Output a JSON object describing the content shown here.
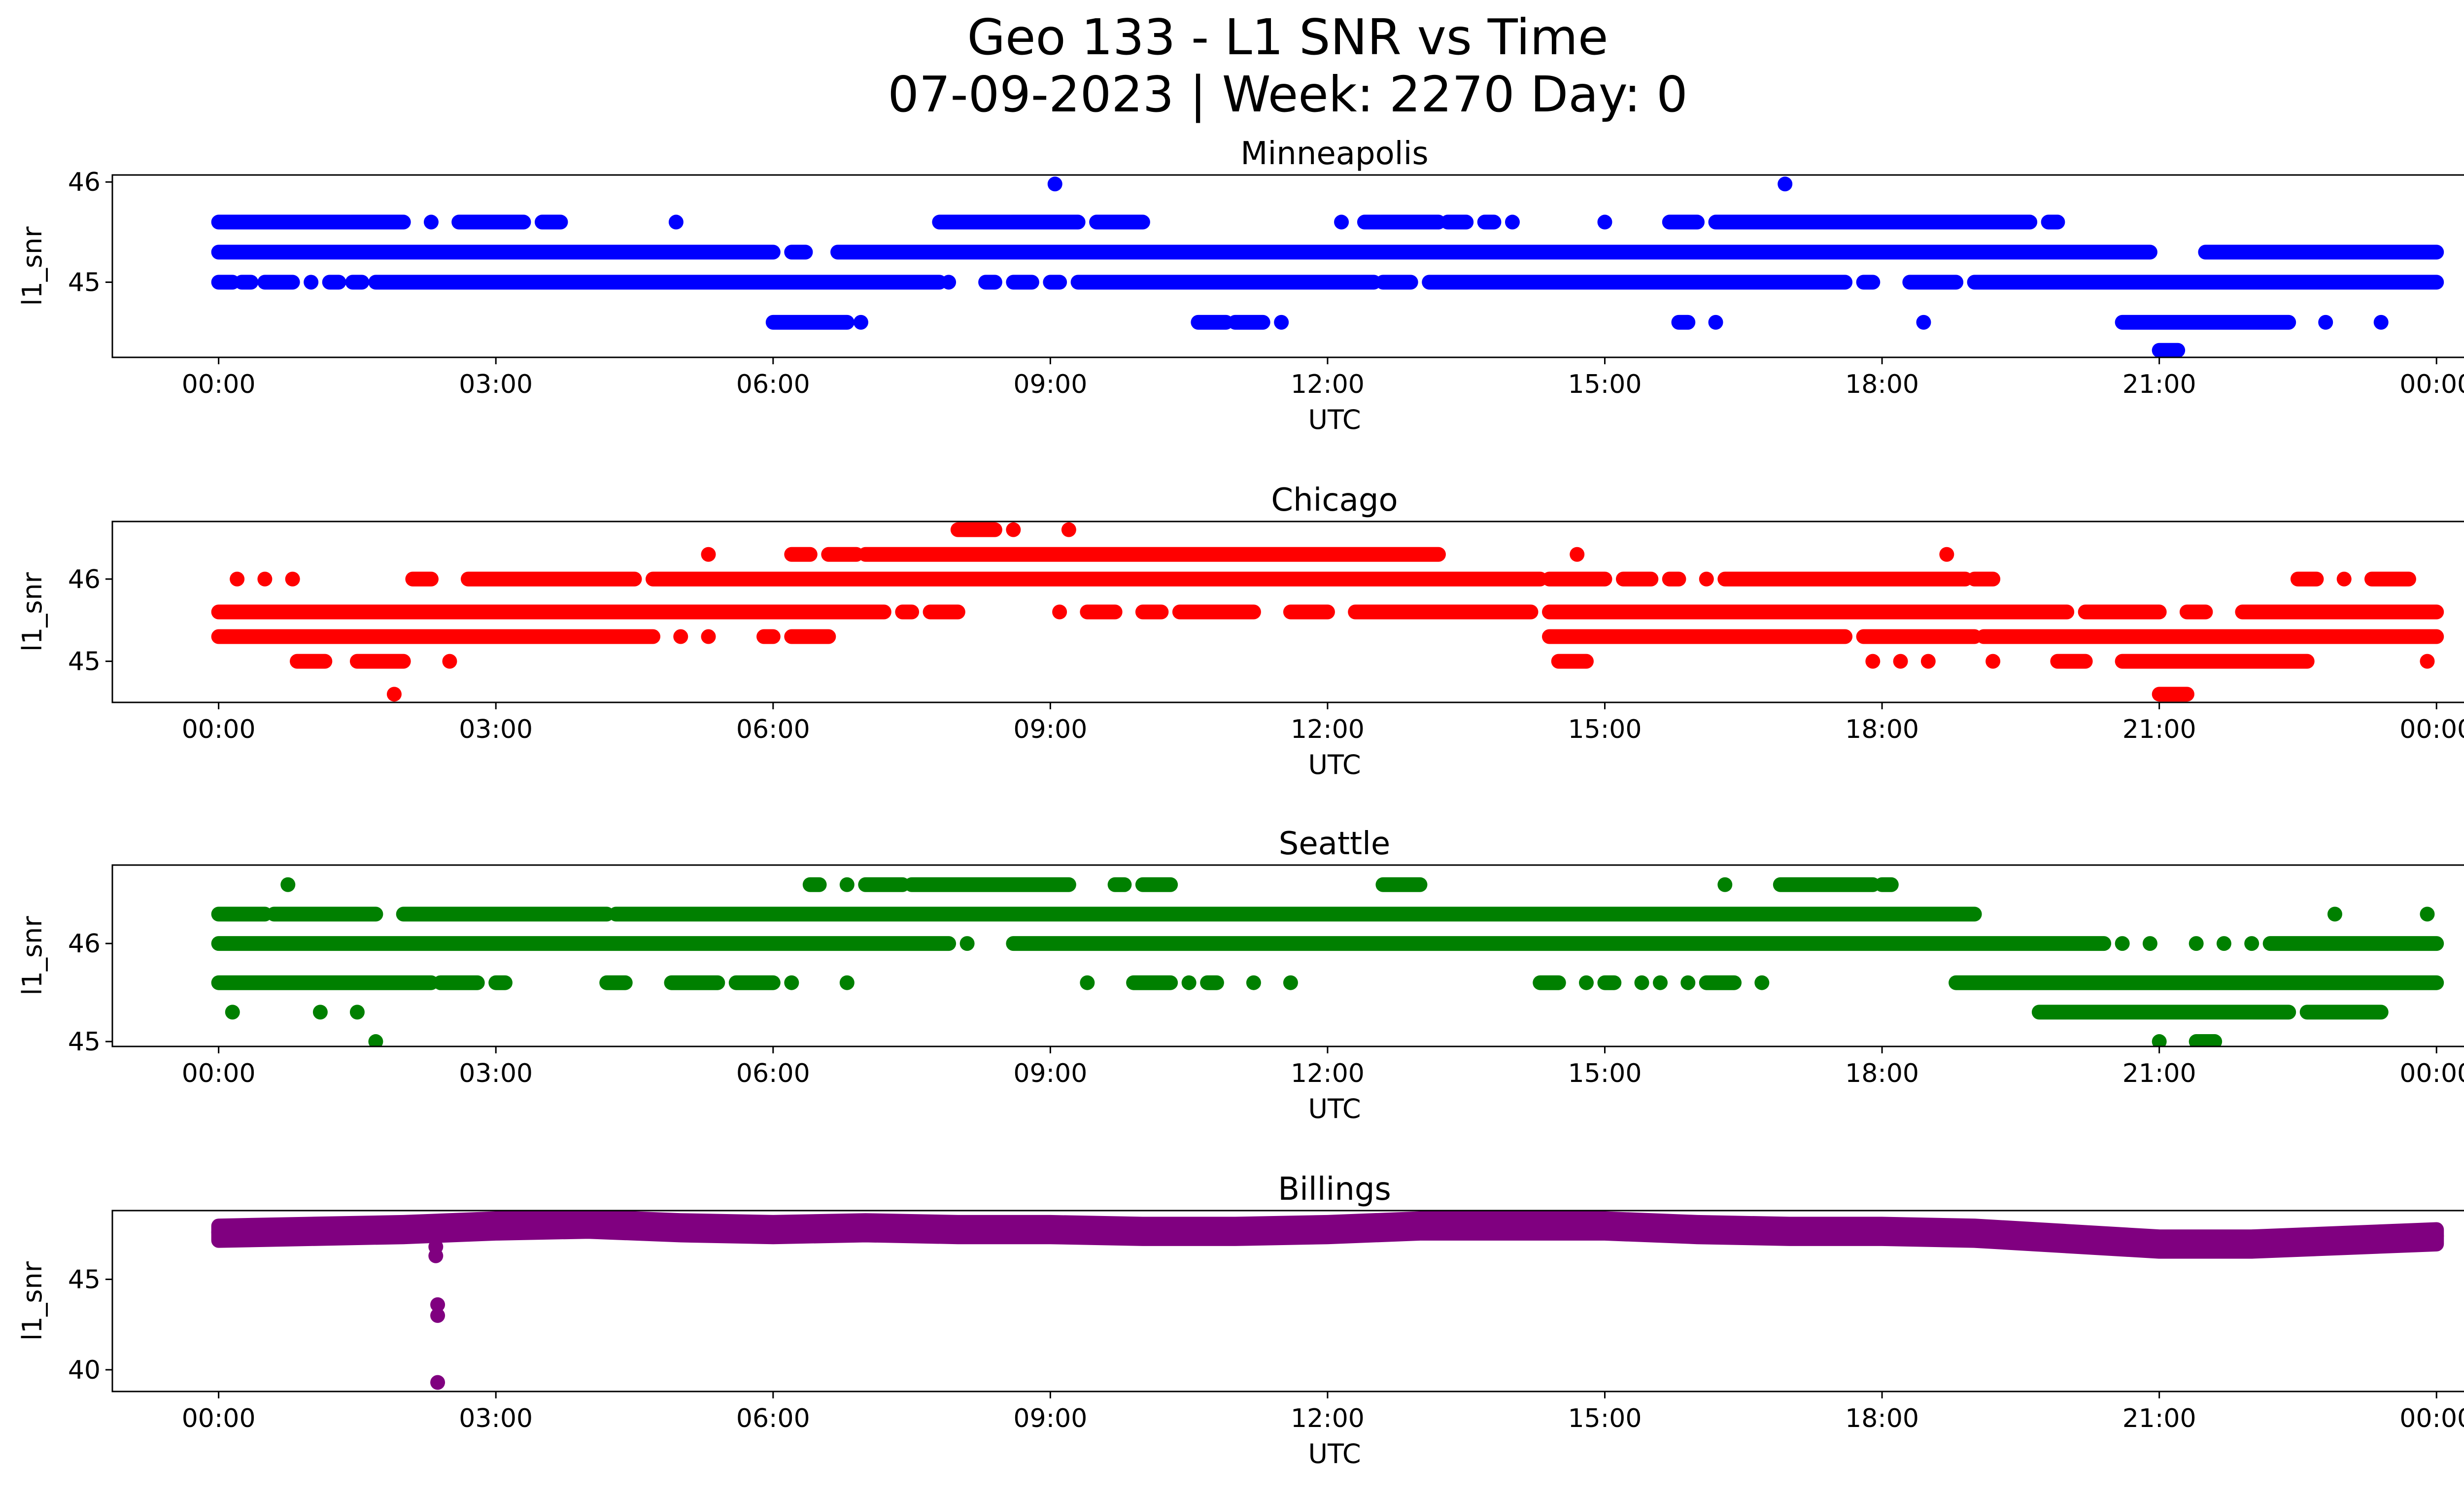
{
  "figure": {
    "title_line1": "Geo 133 - L1 SNR vs Time",
    "title_line2": "07-09-2023 | Week: 2270 Day: 0"
  },
  "chart_data": [
    {
      "type": "scatter",
      "title": "Minneapolis",
      "xlabel": "UTC",
      "ylabel": "l1_snr",
      "color": "#0000ff",
      "x_ticks": [
        "00:00",
        "03:00",
        "06:00",
        "09:00",
        "12:00",
        "15:00",
        "18:00",
        "21:00",
        "00:00"
      ],
      "xlim_hours": [
        -1.15,
        25.3
      ],
      "ylim": [
        44.25,
        46.07
      ],
      "y_ticks": [
        45,
        46
      ],
      "levels": [
        {
          "y": 44.6,
          "ranges": [
            [
              6.0,
              6.8
            ],
            [
              6.95,
              6.95
            ],
            [
              10.6,
              10.9
            ],
            [
              11.0,
              11.3
            ],
            [
              11.5,
              11.5
            ],
            [
              15.8,
              15.9
            ],
            [
              16.2,
              16.2
            ],
            [
              18.45,
              18.45
            ],
            [
              20.6,
              22.4
            ],
            [
              22.8,
              22.8
            ],
            [
              23.4,
              23.4
            ]
          ]
        },
        {
          "y": 45.0,
          "ranges": [
            [
              0.0,
              0.15
            ],
            [
              0.25,
              0.35
            ],
            [
              0.5,
              0.8
            ],
            [
              1.0,
              1.0
            ],
            [
              1.2,
              1.3
            ],
            [
              1.45,
              1.55
            ],
            [
              1.7,
              7.8
            ],
            [
              7.9,
              7.9
            ],
            [
              8.3,
              8.4
            ],
            [
              8.6,
              8.8
            ],
            [
              9.0,
              9.1
            ],
            [
              9.3,
              12.5
            ],
            [
              12.6,
              12.9
            ],
            [
              13.1,
              17.6
            ],
            [
              17.8,
              17.9
            ],
            [
              18.3,
              18.8
            ],
            [
              19.0,
              24.0
            ]
          ]
        },
        {
          "y": 45.3,
          "ranges": [
            [
              0.0,
              6.0
            ],
            [
              6.2,
              6.35
            ],
            [
              6.7,
              20.9
            ],
            [
              21.5,
              24.0
            ]
          ]
        },
        {
          "y": 45.6,
          "ranges": [
            [
              0.0,
              2.0
            ],
            [
              2.3,
              2.3
            ],
            [
              2.6,
              3.3
            ],
            [
              3.5,
              3.7
            ],
            [
              4.95,
              4.95
            ],
            [
              7.8,
              9.3
            ],
            [
              9.5,
              10.0
            ],
            [
              12.15,
              12.15
            ],
            [
              12.4,
              13.2
            ],
            [
              13.3,
              13.5
            ],
            [
              13.7,
              13.8
            ],
            [
              14.0,
              14.0
            ],
            [
              15.0,
              15.0
            ],
            [
              15.7,
              16.0
            ],
            [
              16.2,
              19.6
            ],
            [
              19.8,
              19.9
            ]
          ]
        },
        {
          "y": 45.98,
          "ranges": [
            [
              9.05,
              9.05
            ],
            [
              16.95,
              16.95
            ]
          ]
        },
        {
          "y": 44.32,
          "ranges": [
            [
              21.0,
              21.2
            ]
          ]
        }
      ]
    },
    {
      "type": "scatter",
      "title": "Chicago",
      "xlabel": "UTC",
      "ylabel": "l1_snr",
      "color": "#ff0000",
      "x_ticks": [
        "00:00",
        "03:00",
        "06:00",
        "09:00",
        "12:00",
        "15:00",
        "18:00",
        "21:00",
        "00:00"
      ],
      "xlim_hours": [
        -1.15,
        25.3
      ],
      "ylim": [
        44.5,
        46.7
      ],
      "y_ticks": [
        45,
        46
      ],
      "levels": [
        {
          "y": 44.6,
          "ranges": [
            [
              1.9,
              1.9
            ],
            [
              21.0,
              21.3
            ]
          ]
        },
        {
          "y": 45.0,
          "ranges": [
            [
              0.85,
              1.15
            ],
            [
              1.5,
              2.0
            ],
            [
              2.5,
              2.5
            ],
            [
              14.5,
              14.8
            ],
            [
              17.9,
              17.9
            ],
            [
              18.2,
              18.2
            ],
            [
              18.5,
              18.5
            ],
            [
              19.2,
              19.2
            ],
            [
              19.9,
              20.2
            ],
            [
              20.6,
              22.6
            ],
            [
              23.9,
              23.9
            ]
          ]
        },
        {
          "y": 45.3,
          "ranges": [
            [
              0.0,
              4.7
            ],
            [
              5.0,
              5.0
            ],
            [
              5.3,
              5.3
            ],
            [
              5.9,
              6.0
            ],
            [
              6.2,
              6.6
            ],
            [
              14.4,
              17.6
            ],
            [
              17.8,
              19.0
            ],
            [
              19.1,
              24.0
            ]
          ]
        },
        {
          "y": 45.6,
          "ranges": [
            [
              0.0,
              7.2
            ],
            [
              7.4,
              7.5
            ],
            [
              7.7,
              8.0
            ],
            [
              9.1,
              9.1
            ],
            [
              9.4,
              9.7
            ],
            [
              10.0,
              10.2
            ],
            [
              10.4,
              11.2
            ],
            [
              11.6,
              12.0
            ],
            [
              12.3,
              14.2
            ],
            [
              14.4,
              20.0
            ],
            [
              20.2,
              21.0
            ],
            [
              21.3,
              21.5
            ],
            [
              21.9,
              24.0
            ]
          ]
        },
        {
          "y": 46.0,
          "ranges": [
            [
              0.2,
              0.2
            ],
            [
              0.5,
              0.5
            ],
            [
              0.8,
              0.8
            ],
            [
              2.1,
              2.3
            ],
            [
              2.7,
              4.5
            ],
            [
              4.7,
              14.3
            ],
            [
              14.4,
              15.0
            ],
            [
              15.2,
              15.5
            ],
            [
              15.7,
              15.8
            ],
            [
              16.1,
              16.1
            ],
            [
              16.3,
              18.9
            ],
            [
              19.0,
              19.2
            ],
            [
              22.5,
              22.7
            ],
            [
              23.0,
              23.0
            ],
            [
              23.3,
              23.7
            ]
          ]
        },
        {
          "y": 46.3,
          "ranges": [
            [
              5.3,
              5.3
            ],
            [
              6.2,
              6.4
            ],
            [
              6.6,
              6.9
            ],
            [
              7.0,
              13.2
            ],
            [
              14.7,
              14.7
            ],
            [
              18.7,
              18.7
            ]
          ]
        },
        {
          "y": 46.6,
          "ranges": [
            [
              8.0,
              8.4
            ],
            [
              8.6,
              8.6
            ],
            [
              9.2,
              9.2
            ]
          ]
        }
      ]
    },
    {
      "type": "scatter",
      "title": "Seattle",
      "xlabel": "UTC",
      "ylabel": "l1_snr",
      "color": "#008000",
      "x_ticks": [
        "00:00",
        "03:00",
        "06:00",
        "09:00",
        "12:00",
        "15:00",
        "18:00",
        "21:00",
        "00:00"
      ],
      "xlim_hours": [
        -1.15,
        25.3
      ],
      "ylim": [
        44.95,
        46.8
      ],
      "y_ticks": [
        45,
        46
      ],
      "levels": [
        {
          "y": 45.0,
          "ranges": [
            [
              1.7,
              1.7
            ],
            [
              21.0,
              21.0
            ],
            [
              21.4,
              21.6
            ]
          ]
        },
        {
          "y": 45.3,
          "ranges": [
            [
              0.15,
              0.15
            ],
            [
              1.1,
              1.1
            ],
            [
              1.5,
              1.5
            ],
            [
              19.7,
              22.4
            ],
            [
              22.6,
              23.4
            ]
          ]
        },
        {
          "y": 45.6,
          "ranges": [
            [
              0.0,
              2.3
            ],
            [
              2.4,
              2.8
            ],
            [
              3.0,
              3.1
            ],
            [
              4.2,
              4.4
            ],
            [
              4.9,
              5.4
            ],
            [
              5.6,
              6.0
            ],
            [
              6.2,
              6.2
            ],
            [
              6.8,
              6.8
            ],
            [
              9.4,
              9.4
            ],
            [
              9.9,
              10.3
            ],
            [
              10.5,
              10.5
            ],
            [
              10.7,
              10.8
            ],
            [
              11.2,
              11.2
            ],
            [
              11.6,
              11.6
            ],
            [
              14.3,
              14.5
            ],
            [
              14.8,
              14.8
            ],
            [
              15.0,
              15.1
            ],
            [
              15.4,
              15.4
            ],
            [
              15.6,
              15.6
            ],
            [
              15.9,
              15.9
            ],
            [
              16.1,
              16.4
            ],
            [
              16.7,
              16.7
            ],
            [
              18.8,
              24.0
            ]
          ]
        },
        {
          "y": 46.0,
          "ranges": [
            [
              0.0,
              7.9
            ],
            [
              8.1,
              8.1
            ],
            [
              8.6,
              20.4
            ],
            [
              20.6,
              20.6
            ],
            [
              20.9,
              20.9
            ],
            [
              21.4,
              21.4
            ],
            [
              21.7,
              21.7
            ],
            [
              22.0,
              22.0
            ],
            [
              22.2,
              24.0
            ]
          ]
        },
        {
          "y": 46.3,
          "ranges": [
            [
              0.0,
              0.5
            ],
            [
              0.6,
              1.7
            ],
            [
              2.0,
              4.2
            ],
            [
              4.3,
              19.0
            ],
            [
              22.9,
              22.9
            ],
            [
              23.9,
              23.9
            ]
          ]
        },
        {
          "y": 46.6,
          "ranges": [
            [
              0.75,
              0.75
            ],
            [
              6.4,
              6.5
            ],
            [
              6.8,
              6.8
            ],
            [
              7.0,
              7.4
            ],
            [
              7.5,
              9.2
            ],
            [
              9.7,
              9.8
            ],
            [
              10.0,
              10.3
            ],
            [
              12.6,
              13.0
            ],
            [
              16.3,
              16.3
            ],
            [
              16.9,
              17.9
            ],
            [
              18.0,
              18.1
            ]
          ]
        }
      ]
    },
    {
      "type": "scatter",
      "title": "Billings",
      "xlabel": "UTC",
      "ylabel": "l1_snr",
      "color": "#800080",
      "x_ticks": [
        "00:00",
        "03:00",
        "06:00",
        "09:00",
        "12:00",
        "15:00",
        "18:00",
        "21:00",
        "00:00"
      ],
      "xlim_hours": [
        -1.15,
        25.3
      ],
      "ylim": [
        38.8,
        48.8
      ],
      "y_ticks": [
        40,
        45
      ],
      "band": [
        [
          0.0,
          47.6
        ],
        [
          1.0,
          47.7
        ],
        [
          2.0,
          47.8
        ],
        [
          3.0,
          48.0
        ],
        [
          4.0,
          48.1
        ],
        [
          5.0,
          47.9
        ],
        [
          6.0,
          47.8
        ],
        [
          7.0,
          47.9
        ],
        [
          8.0,
          47.8
        ],
        [
          9.0,
          47.8
        ],
        [
          10.0,
          47.7
        ],
        [
          11.0,
          47.7
        ],
        [
          12.0,
          47.8
        ],
        [
          13.0,
          48.0
        ],
        [
          14.0,
          48.0
        ],
        [
          15.0,
          48.0
        ],
        [
          16.0,
          47.8
        ],
        [
          17.0,
          47.7
        ],
        [
          18.0,
          47.7
        ],
        [
          19.0,
          47.6
        ],
        [
          20.0,
          47.3
        ],
        [
          21.0,
          47.0
        ],
        [
          22.0,
          47.0
        ],
        [
          23.0,
          47.2
        ],
        [
          24.0,
          47.4
        ]
      ],
      "outliers": [
        [
          2.35,
          46.8
        ],
        [
          2.35,
          46.3
        ],
        [
          2.37,
          43.6
        ],
        [
          2.37,
          43.0
        ],
        [
          2.37,
          39.3
        ]
      ]
    }
  ]
}
